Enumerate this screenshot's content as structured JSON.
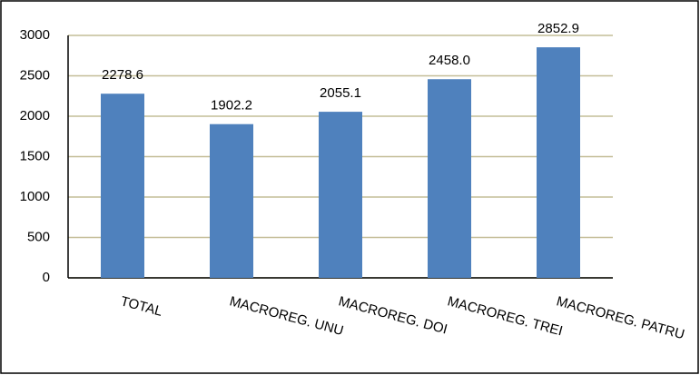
{
  "chart_data": {
    "type": "bar",
    "categories": [
      "TOTAL",
      "MACROREG. UNU",
      "MACROREG. DOI",
      "MACROREG. TREI",
      "MACROREG. PATRU"
    ],
    "values": [
      2278.6,
      1902.2,
      2055.1,
      2458.0,
      2852.9
    ],
    "value_labels": [
      "2278.6",
      "1902.2",
      "2055.1",
      "2458.0",
      "2852.9"
    ],
    "color": "#4f81bd",
    "ylim": [
      0,
      3000
    ],
    "yticks": [
      0,
      500,
      1000,
      1500,
      2000,
      2500,
      3000
    ],
    "grid": true
  }
}
